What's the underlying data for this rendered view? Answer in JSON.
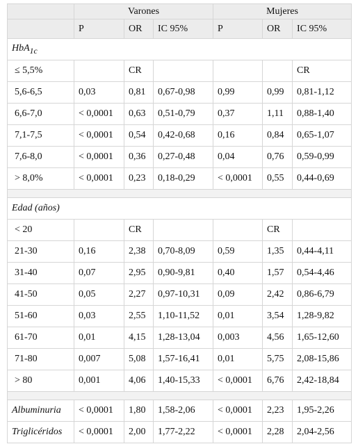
{
  "header": {
    "groups": [
      "Varones",
      "Mujeres"
    ],
    "columns": [
      "P",
      "OR",
      "IC 95%",
      "P",
      "OR",
      "IC 95%"
    ]
  },
  "sections": [
    {
      "title": {
        "text": "HbA",
        "subscript": "1c"
      },
      "rows": [
        [
          "≤ 5,5%",
          null,
          "CR",
          null,
          null,
          null,
          "CR"
        ],
        [
          "5,6-6,5",
          "0,03",
          "0,81",
          "0,67-0,98",
          "0,99",
          "0,99",
          "0,81-1,12"
        ],
        [
          "6,6-7,0",
          "< 0,0001",
          "0,63",
          "0,51-0,79",
          "0,37",
          "1,11",
          "0,88-1,40"
        ],
        [
          "7,1-7,5",
          "< 0,0001",
          "0,54",
          "0,42-0,68",
          "0,16",
          "0,84",
          "0,65-1,07"
        ],
        [
          "7,6-8,0",
          "< 0,0001",
          "0,36",
          "0,27-0,48",
          "0,04",
          "0,76",
          "0,59-0,99"
        ],
        [
          "> 8,0%",
          "< 0,0001",
          "0,23",
          "0,18-0,29",
          "< 0,0001",
          "0,55",
          "0,44-0,69"
        ]
      ]
    },
    {
      "title": {
        "text": "Edad (años)"
      },
      "rows": [
        [
          "< 20",
          null,
          "CR",
          null,
          null,
          "CR",
          null
        ],
        [
          "21-30",
          "0,16",
          "2,38",
          "0,70-8,09",
          "0,59",
          "1,35",
          "0,44-4,11"
        ],
        [
          "31-40",
          "0,07",
          "2,95",
          "0,90-9,81",
          "0,40",
          "1,57",
          "0,54-4,46"
        ],
        [
          "41-50",
          "0,05",
          "2,27",
          "0,97-10,31",
          "0,09",
          "2,42",
          "0,86-6,79"
        ],
        [
          "51-60",
          "0,03",
          "2,55",
          "1,10-11,52",
          "0,01",
          "3,54",
          "1,28-9,82"
        ],
        [
          "61-70",
          "0,01",
          "4,15",
          "1,28-13,04",
          "0,003",
          "4,56",
          "1,65-12,60"
        ],
        [
          "71-80",
          "0,007",
          "5,08",
          "1,57-16,41",
          "0,01",
          "5,75",
          "2,08-15,86"
        ],
        [
          "> 80",
          "0,001",
          "4,06",
          "1,40-15,33",
          "< 0,0001",
          "6,76",
          "2,42-18,84"
        ]
      ]
    },
    {
      "rows": [
        [
          "Albuminuria",
          "< 0,0001",
          "1,80",
          "1,58-2,06",
          "< 0,0001",
          "2,23",
          "1,95-2,26"
        ],
        [
          "Triglicéridos",
          "< 0,0001",
          "2,00",
          "1,77-2,22",
          "< 0,0001",
          "2,28",
          "2,04-2,56"
        ]
      ]
    }
  ]
}
